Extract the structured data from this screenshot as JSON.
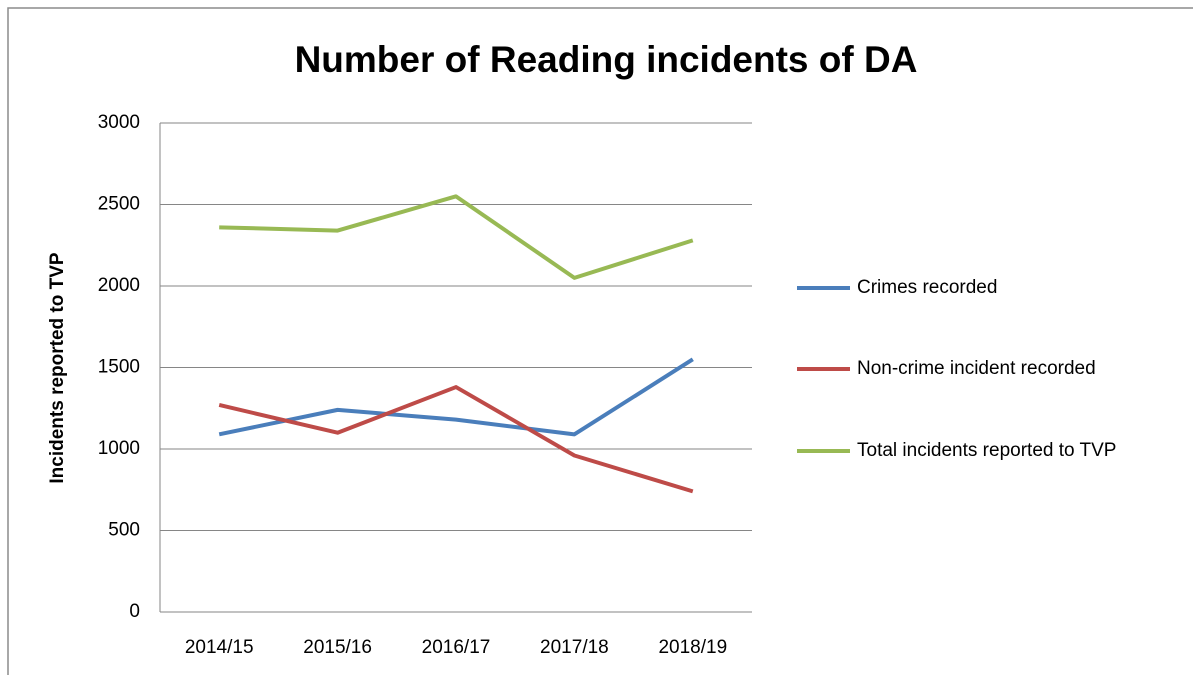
{
  "chart_data": {
    "type": "line",
    "title": "Number of Reading incidents of DA",
    "y_label": "Incidents reported to TVP",
    "categories": [
      "2014/15",
      "2015/16",
      "2016/17",
      "2017/18",
      "2018/19"
    ],
    "series": [
      {
        "name": "Crimes recorded",
        "color": "#4a7ebb",
        "values": [
          1090,
          1240,
          1180,
          1090,
          1550
        ]
      },
      {
        "name": "Non-crime incident recorded",
        "color": "#be4b48",
        "values": [
          1270,
          1100,
          1380,
          960,
          740
        ]
      },
      {
        "name": "Total incidents reported to TVP",
        "color": "#98b954",
        "values": [
          2360,
          2340,
          2550,
          2050,
          2280
        ]
      }
    ],
    "ylim": [
      0,
      3000
    ],
    "yticks": [
      0,
      500,
      1000,
      1500,
      2000,
      2500,
      3000
    ],
    "grid": true
  }
}
